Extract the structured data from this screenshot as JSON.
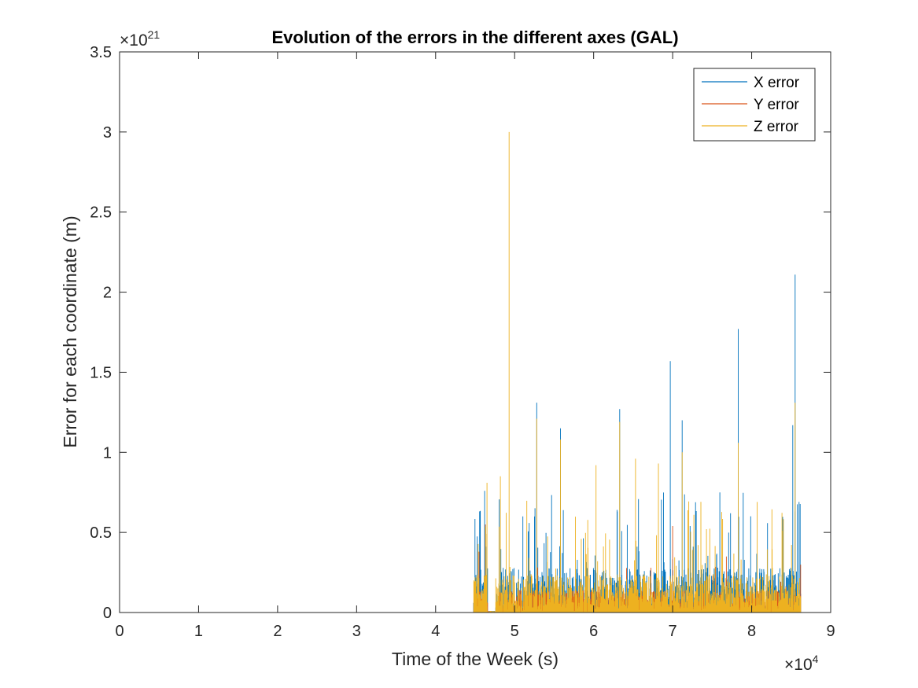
{
  "chart_data": {
    "type": "line",
    "title": "Evolution of the errors in the different axes (GAL)",
    "xlabel": "Time of the Week (s)",
    "ylabel": "Error for each coordinate (m)",
    "x_multiplier": {
      "base": "×10",
      "exp": "4"
    },
    "y_multiplier": {
      "base": "×10",
      "exp": "21"
    },
    "xlim": [
      0,
      9
    ],
    "ylim": [
      0,
      3.5
    ],
    "x_ticks": [
      0,
      1,
      2,
      3,
      4,
      5,
      6,
      7,
      8,
      9
    ],
    "x_tick_labels": [
      "0",
      "1",
      "2",
      "3",
      "4",
      "5",
      "6",
      "7",
      "8",
      "9"
    ],
    "y_ticks": [
      0,
      0.5,
      1,
      1.5,
      2,
      2.5,
      3,
      3.5
    ],
    "y_tick_labels": [
      "0",
      "0.5",
      "1",
      "1.5",
      "2",
      "2.5",
      "3",
      "3.5"
    ],
    "grid": false,
    "legend_position": "top-right",
    "series": [
      {
        "name": "X error",
        "color": "#0072BD",
        "peaks": [
          [
            4.62,
            0.76
          ],
          [
            5.28,
            1.31
          ],
          [
            5.58,
            1.15
          ],
          [
            6.33,
            1.27
          ],
          [
            6.97,
            1.57
          ],
          [
            7.12,
            1.2
          ],
          [
            7.83,
            1.77
          ],
          [
            8.52,
            1.17
          ],
          [
            8.55,
            2.11
          ],
          [
            8.6,
            0.69
          ]
        ]
      },
      {
        "name": "Y error",
        "color": "#D95319",
        "peaks": [
          [
            4.55,
            0.38
          ],
          [
            4.63,
            0.55
          ],
          [
            7.0,
            0.54
          ],
          [
            7.68,
            0.35
          ]
        ]
      },
      {
        "name": "Z error",
        "color": "#EDB120",
        "peaks": [
          [
            4.5,
            0.22
          ],
          [
            4.65,
            0.81
          ],
          [
            4.82,
            0.85
          ],
          [
            4.93,
            3.0
          ],
          [
            5.28,
            1.21
          ],
          [
            5.58,
            1.08
          ],
          [
            6.03,
            0.92
          ],
          [
            6.33,
            1.19
          ],
          [
            6.53,
            0.96
          ],
          [
            6.82,
            0.93
          ],
          [
            7.12,
            1.0
          ],
          [
            7.83,
            1.06
          ],
          [
            8.07,
            0.69
          ],
          [
            8.55,
            1.31
          ]
        ]
      }
    ],
    "burst_range": [
      4.48,
      8.62
    ]
  }
}
